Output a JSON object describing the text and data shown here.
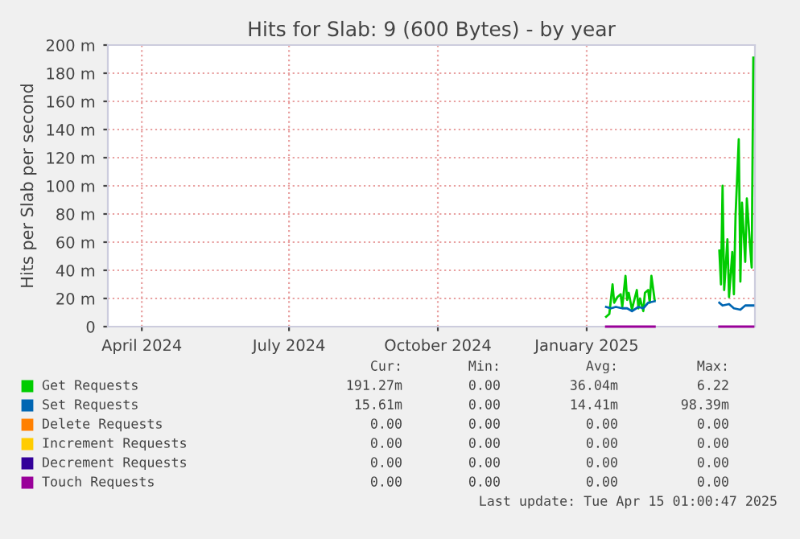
{
  "chart_data": {
    "type": "line",
    "title": "Hits for Slab: 9 (600 Bytes) - by year",
    "ylabel": "Hits per Slab per second",
    "xlim": [
      "2024-03-11",
      "2025-04-15"
    ],
    "xticks": [
      {
        "value": "2024-04-01",
        "label": "April 2024"
      },
      {
        "value": "2024-07-01",
        "label": "July 2024"
      },
      {
        "value": "2024-10-01",
        "label": "October 2024"
      },
      {
        "value": "2025-01-01",
        "label": "January 2025"
      }
    ],
    "ylim": [
      0,
      200
    ],
    "yticks": [
      0,
      {
        "value": 20,
        "label": "20 m"
      },
      {
        "value": 40,
        "label": "40 m"
      },
      {
        "value": 60,
        "label": "60 m"
      },
      {
        "value": 80,
        "label": "80 m"
      },
      {
        "value": 100,
        "label": "100 m"
      },
      {
        "value": 120,
        "label": "120 m"
      },
      {
        "value": 140,
        "label": "140 m"
      },
      {
        "value": 160,
        "label": "160 m"
      },
      {
        "value": 180,
        "label": "180 m"
      },
      {
        "value": 200,
        "label": "200 m"
      }
    ],
    "grid": true,
    "legend": "bottom",
    "marker": "none",
    "line_style": "solid",
    "series": [
      {
        "name": "Get Requests",
        "color": "#00cc00",
        "x": [
          "2025-01-13",
          "2025-01-15",
          "2025-01-17",
          "2025-01-18",
          "2025-01-20",
          "2025-01-22",
          "2025-01-23",
          "2025-01-25",
          "2025-01-26",
          "2025-01-27",
          "2025-01-29",
          "2025-01-30",
          "2025-02-01",
          "2025-02-02",
          "2025-02-03",
          "2025-02-05",
          "2025-02-06",
          "2025-02-08",
          "2025-02-09",
          "2025-02-10",
          "2025-02-12",
          "2025-03-01",
          "2025-03-24",
          "2025-03-25",
          "2025-03-26",
          "2025-03-27",
          "2025-03-29",
          "2025-03-30",
          "2025-04-01",
          "2025-04-02",
          "2025-04-03",
          "2025-04-05",
          "2025-04-06",
          "2025-04-07",
          "2025-04-09",
          "2025-04-10",
          "2025-04-12",
          "2025-04-13",
          "2025-04-14"
        ],
        "values": [
          7,
          9,
          30,
          17,
          21,
          23,
          14,
          36,
          19,
          24,
          12,
          17,
          26,
          13,
          20,
          11,
          24,
          26,
          17,
          36,
          19,
          null,
          54,
          30,
          100,
          26,
          62,
          21,
          53,
          23,
          78,
          133,
          32,
          88,
          46,
          91,
          57,
          42,
          191
        ]
      },
      {
        "name": "Set Requests",
        "color": "#0066b3",
        "x": [
          "2025-01-13",
          "2025-01-16",
          "2025-01-19",
          "2025-01-23",
          "2025-01-26",
          "2025-01-29",
          "2025-02-02",
          "2025-02-05",
          "2025-02-08",
          "2025-02-12",
          "2025-03-01",
          "2025-03-24",
          "2025-03-26",
          "2025-03-30",
          "2025-04-02",
          "2025-04-06",
          "2025-04-09",
          "2025-04-14"
        ],
        "values": [
          14,
          13,
          14,
          13,
          13,
          11,
          14,
          13,
          17,
          18,
          null,
          17,
          15,
          16,
          13,
          12,
          15,
          15
        ]
      },
      {
        "name": "Delete Requests",
        "color": "#ff8000"
      },
      {
        "name": "Increment Requests",
        "color": "#ffcc00"
      },
      {
        "name": "Decrement Requests",
        "color": "#330099"
      },
      {
        "name": "Touch Requests",
        "color": "#990099",
        "x": [
          "2025-01-13",
          "2025-02-12",
          "2025-03-01",
          "2025-03-24",
          "2025-04-14"
        ],
        "values": [
          0,
          0,
          null,
          0,
          0
        ]
      }
    ],
    "annotations": [
      "Cur:",
      "Min:",
      "Avg:",
      "Max:",
      "191.27m",
      "0.00",
      "36.04m",
      "6.22",
      "15.61m",
      "0.00",
      "14.41m",
      "98.39m",
      "0.00",
      "0.00",
      "0.00",
      "0.00",
      "0.00",
      "0.00",
      "0.00",
      "0.00",
      "0.00",
      "0.00",
      "0.00",
      "0.00",
      "0.00",
      "0.00",
      "0.00",
      "0.00",
      "Last update: Tue Apr 15 01:00:47 2025"
    ]
  }
}
